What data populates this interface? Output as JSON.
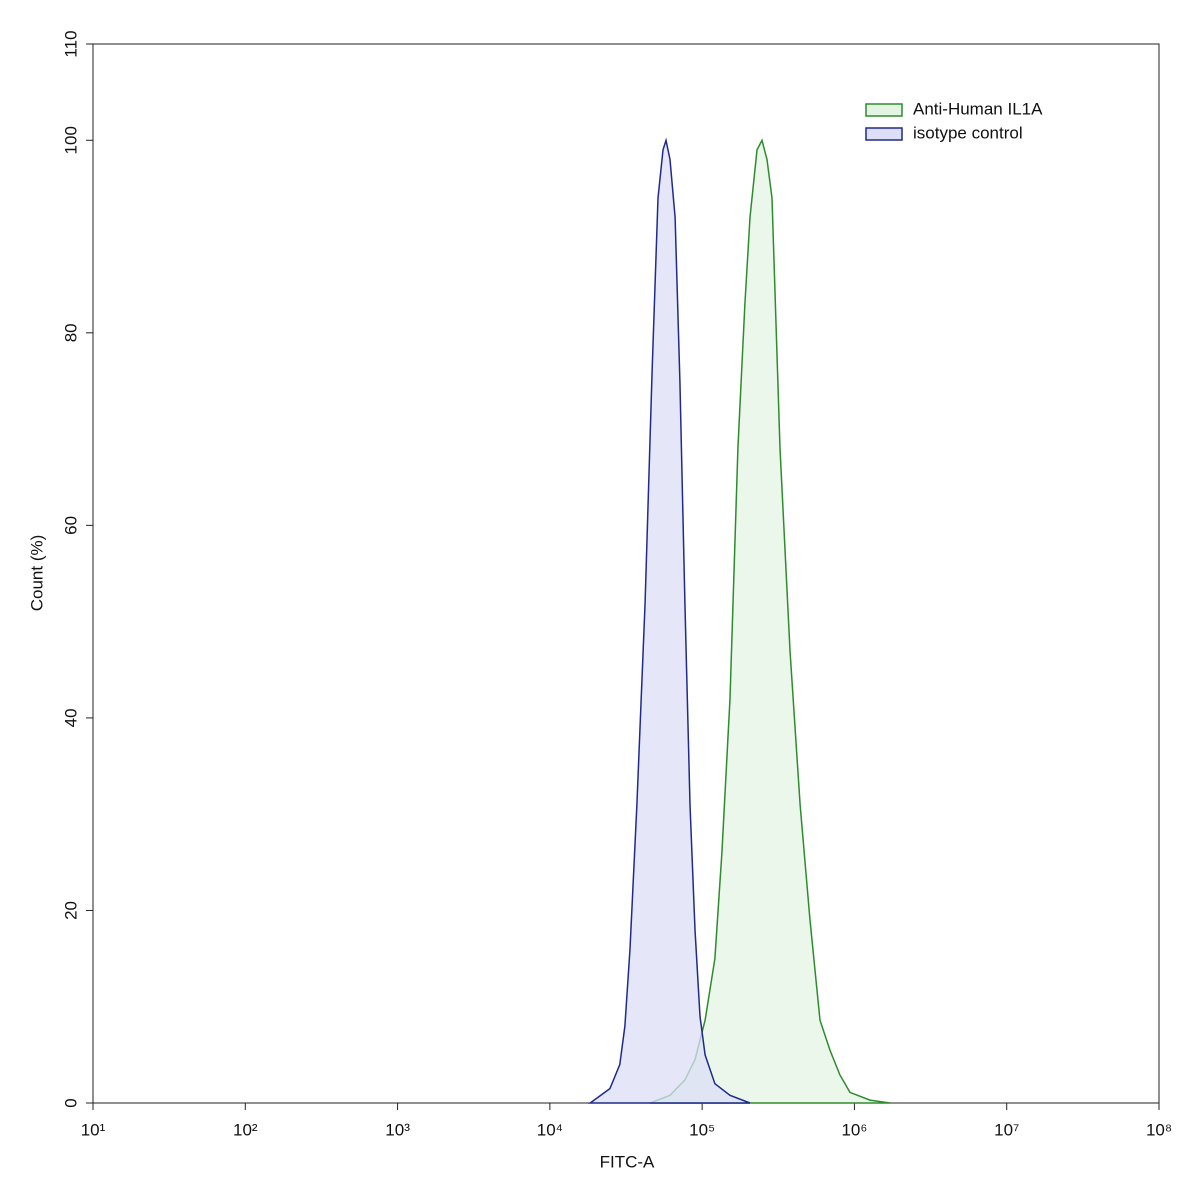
{
  "chart_data": {
    "type": "area",
    "x_label": "FITC-A",
    "y_label": "Count  (%)",
    "x_scale": "log",
    "xlim": [
      10,
      100000000
    ],
    "xticks": [
      {
        "value": 10,
        "label": "10¹"
      },
      {
        "value": 100,
        "label": "10²"
      },
      {
        "value": 1000,
        "label": "10³"
      },
      {
        "value": 10000,
        "label": "10⁴"
      },
      {
        "value": 100000,
        "label": "10⁵"
      },
      {
        "value": 1000000,
        "label": "10⁶"
      },
      {
        "value": 10000000,
        "label": "10⁷"
      },
      {
        "value": 100000000,
        "label": "10⁸"
      }
    ],
    "ylim": [
      0,
      110
    ],
    "yticks": [
      0,
      20,
      40,
      60,
      80,
      100,
      110
    ],
    "legend": "upper right",
    "series": [
      {
        "name": "Anti-Human IL1A",
        "color": "#2e8b2e",
        "fill": "#e3f4e3",
        "x": [
          45500,
          61500,
          77100,
          89700,
          104500,
          121300,
          134900,
          152400,
          171800,
          191000,
          206100,
          229100,
          247200,
          266700,
          287700,
          324300,
          377600,
          439500,
          510500,
          594300,
          690200,
          803500,
          935400,
          1264000,
          1710000
        ],
        "values": [
          0,
          0.8,
          2.4,
          4.5,
          8.6,
          15,
          26,
          42,
          68,
          83,
          92,
          99,
          100,
          98,
          94,
          68,
          47,
          31,
          19,
          8.6,
          5.5,
          2.9,
          1.1,
          0.3,
          0
        ]
      },
      {
        "name": "isotype control",
        "color": "#1f2a8c",
        "fill": "#dcdff6",
        "x": [
          18400,
          24800,
          28800,
          31100,
          33600,
          37300,
          42200,
          46900,
          51300,
          55300,
          57900,
          61500,
          66400,
          71400,
          77100,
          83200,
          89700,
          96800,
          104500,
          121300,
          152400,
          206100
        ],
        "values": [
          0,
          1.5,
          4,
          8,
          16,
          31,
          52,
          76,
          94,
          99,
          100,
          98,
          92,
          75,
          52,
          31,
          18,
          9,
          5,
          2,
          0.8,
          0
        ]
      }
    ]
  }
}
